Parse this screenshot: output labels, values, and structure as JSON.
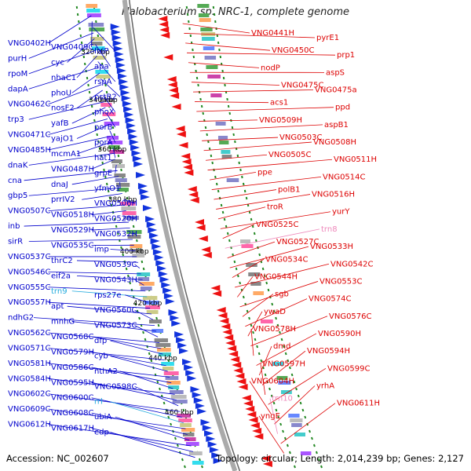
{
  "title": "Halobacterium sp. NRC-1, complete genome",
  "footer": {
    "accession": "Accession: NC_002607",
    "summary": "Topology: circular; Length: 2,014,239 bp; Genes: 2,127"
  },
  "colors": {
    "forward_label": "#0000cc",
    "reverse_label": "#dd0000",
    "rna_pink": "#ee88bb",
    "rna_cyan": "#22aadd",
    "backbone": "#aaaaaa",
    "tick_green": "#228822",
    "forward_arrow": "#1133dd",
    "reverse_arrow": "#ee1111"
  },
  "scale_labels": [
    "320 kbp",
    "340 kbp",
    "360 kbp",
    "380 kbp",
    "400 kbp",
    "420 kbp",
    "440 kbp",
    "460 kbp"
  ],
  "left_labels": [
    "VNG0402H",
    "VNG0409C",
    "folP",
    "purH",
    "cyc",
    "apa",
    "rpoM",
    "nhaC1",
    "rspA",
    "dapA",
    "phoU",
    "pstB2",
    "VNG0462C",
    "nosF2",
    "phoX",
    "trp3",
    "yafB",
    "porB",
    "VNG0471C",
    "yajO1",
    "porA",
    "VNG0485H",
    "mcmA1",
    "hat1",
    "dnaK",
    "VNG0487H",
    "grpE",
    "cna",
    "dnaJ",
    "yfmO1",
    "gbp5",
    "prrIV2",
    "VNG0506H",
    "VNG0507C",
    "VNG0518H",
    "VNG0520H",
    "inb",
    "VNG0529H",
    "VNG0532H",
    "sirR",
    "VNG0535C",
    "imp",
    "VNG0537C",
    "thrC2",
    "VNG0539C",
    "VNG0546C",
    "eif2a",
    "VNG0543H",
    "VNG0555C",
    "trn9",
    "rps27e",
    "VNG0557H",
    "apt",
    "VNG0560C",
    "ndhG2",
    "mnhG",
    "VNG0573C",
    "VNG0562C",
    "VNG0568C",
    "dfp",
    "VNG0571C",
    "VNG0579H",
    "cyb",
    "VNG0581H",
    "VNG0586C",
    "nthA2",
    "VNG0584H",
    "VNG0595H",
    "VNG0598C",
    "VNG0602C",
    "VNG0600C",
    "rrl",
    "VNG0609C",
    "VNG0608C",
    "ubiA",
    "VNG0612H",
    "VNG0617H",
    "edp"
  ],
  "right_labels": [
    "VNG0441H",
    "pyrE1",
    "VNG0450C",
    "prp1",
    "nodP",
    "aspS",
    "VNG0475C",
    "VNG0475a",
    "acs1",
    "ppd",
    "VNG0509H",
    "aspB1",
    "VNG0503C",
    "VNG0508H",
    "VNG0505C",
    "VNG0511H",
    "ppe",
    "VNG0514C",
    "polB1",
    "VNG0516H",
    "troR",
    "yurY",
    "VNG0525C",
    "trn8",
    "VNG0527C",
    "VNG0533H",
    "VNG0534C",
    "VNG0542C",
    "VNG0544H",
    "VNG0553C",
    "sgb",
    "VNG0574C",
    "ywaD",
    "VNG0576C",
    "VNG0578H",
    "VNG0590H",
    "dmd",
    "VNG0594H",
    "VNG0597H",
    "VNG0599C",
    "VNG0604H",
    "yrhA",
    "trn10",
    "VNG0611H",
    "yngE"
  ]
}
